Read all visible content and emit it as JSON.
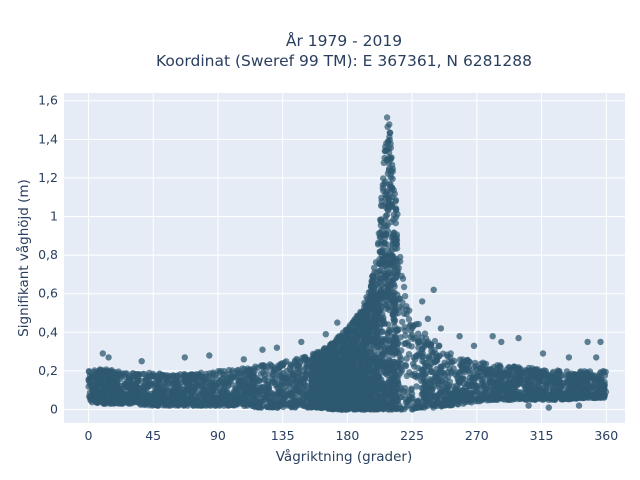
{
  "chart_data": {
    "type": "scatter",
    "title": "År 1979 - 2019",
    "subtitle": "Koordinat (Sweref 99 TM): E 367361, N 6281288",
    "xlabel": "Vågriktning (grader)",
    "ylabel": "Signifikant våghöjd (m)",
    "xlim": [
      -17,
      373
    ],
    "ylim": [
      -0.07,
      1.64
    ],
    "xticks": [
      0,
      45,
      90,
      135,
      180,
      225,
      270,
      315,
      360
    ],
    "xtick_labels": [
      "0",
      "45",
      "90",
      "135",
      "180",
      "225",
      "270",
      "315",
      "360"
    ],
    "yticks": [
      0,
      0.2,
      0.4,
      0.6,
      0.8,
      1,
      1.2,
      1.4,
      1.6
    ],
    "ytick_labels": [
      "0",
      "0,2",
      "0,4",
      "0,6",
      "0,8",
      "1",
      "1,2",
      "1,4",
      "1,6"
    ],
    "grid": true,
    "colors": {
      "marker": "#2e5870",
      "plot_bg": "#e5ecf6",
      "text": "#2a3f5f"
    },
    "envelope": {
      "description_units": "x in degrees, y in metres (approximate upper/lower envelope of dense point cloud)",
      "x": [
        0,
        10,
        20,
        30,
        45,
        60,
        75,
        90,
        105,
        120,
        135,
        150,
        160,
        170,
        180,
        190,
        195,
        200,
        203,
        206,
        208,
        210,
        212,
        215,
        218,
        222,
        225,
        230,
        240,
        250,
        260,
        270,
        285,
        300,
        315,
        330,
        345,
        360
      ],
      "y_upper": [
        0.2,
        0.21,
        0.2,
        0.19,
        0.19,
        0.18,
        0.19,
        0.2,
        0.21,
        0.23,
        0.25,
        0.28,
        0.3,
        0.35,
        0.42,
        0.52,
        0.62,
        0.8,
        1.05,
        1.35,
        1.55,
        1.45,
        1.2,
        1.0,
        0.75,
        0.6,
        0.52,
        0.45,
        0.36,
        0.3,
        0.26,
        0.25,
        0.23,
        0.22,
        0.21,
        0.2,
        0.2,
        0.2
      ],
      "y_lower": [
        0.04,
        0.03,
        0.03,
        0.03,
        0.02,
        0.02,
        0.02,
        0.02,
        0.02,
        0.01,
        0.01,
        0.01,
        0.01,
        0.0,
        0.0,
        0.0,
        0.0,
        0.0,
        0.0,
        0.0,
        0.0,
        0.0,
        0.0,
        0.0,
        0.0,
        0.0,
        0.0,
        0.01,
        0.01,
        0.02,
        0.03,
        0.04,
        0.05,
        0.05,
        0.05,
        0.05,
        0.06,
        0.06
      ]
    },
    "outliers": [
      {
        "x": 10,
        "y": 0.29
      },
      {
        "x": 14,
        "y": 0.27
      },
      {
        "x": 37,
        "y": 0.25
      },
      {
        "x": 67,
        "y": 0.27
      },
      {
        "x": 84,
        "y": 0.28
      },
      {
        "x": 108,
        "y": 0.26
      },
      {
        "x": 121,
        "y": 0.31
      },
      {
        "x": 131,
        "y": 0.32
      },
      {
        "x": 148,
        "y": 0.35
      },
      {
        "x": 165,
        "y": 0.39
      },
      {
        "x": 173,
        "y": 0.45
      },
      {
        "x": 232,
        "y": 0.56
      },
      {
        "x": 240,
        "y": 0.62
      },
      {
        "x": 236,
        "y": 0.47
      },
      {
        "x": 245,
        "y": 0.42
      },
      {
        "x": 258,
        "y": 0.38
      },
      {
        "x": 268,
        "y": 0.33
      },
      {
        "x": 281,
        "y": 0.38
      },
      {
        "x": 287,
        "y": 0.35
      },
      {
        "x": 299,
        "y": 0.37
      },
      {
        "x": 316,
        "y": 0.29
      },
      {
        "x": 334,
        "y": 0.27
      },
      {
        "x": 347,
        "y": 0.35
      },
      {
        "x": 356,
        "y": 0.35
      },
      {
        "x": 353,
        "y": 0.27
      },
      {
        "x": 306,
        "y": 0.02
      },
      {
        "x": 320,
        "y": 0.01
      },
      {
        "x": 341,
        "y": 0.02
      }
    ]
  }
}
